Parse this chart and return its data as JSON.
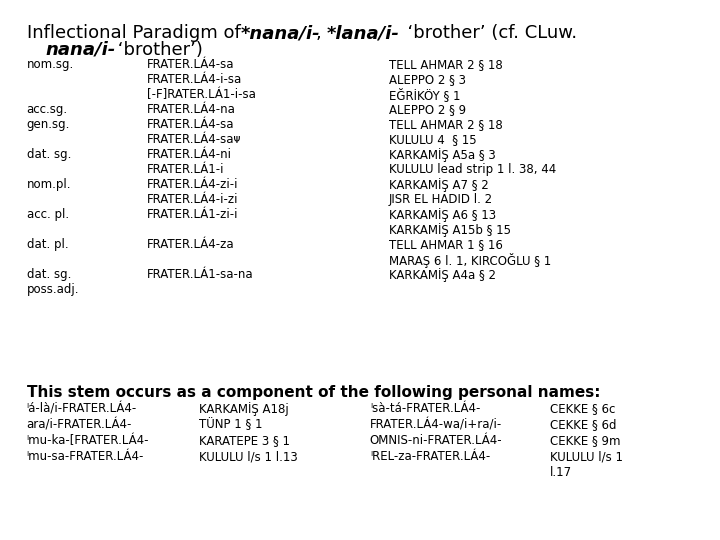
{
  "title_line1": "Inflectional Paradigm of  *nana/i-, *lana/i-  ‘brother’ (cf. CLuw.",
  "title_line2": "   nana/i- ‘brother’)",
  "title_bold_parts": [
    "*nana/i-",
    "*lana/i-",
    "nana/i-"
  ],
  "rows": [
    {
      "case": "nom.sg.",
      "form": "FRATER.LÁ4-sa",
      "ref": "TELL AHMAR 2 § 18"
    },
    {
      "case": "",
      "form": "FRATER.LÁ4-i-sa",
      "ref": "ALEPPO 2 § 3"
    },
    {
      "case": "",
      "form": "[-F]RATER.LÁ1-i-sa",
      "ref": "EĞRİKÖY § 1"
    },
    {
      "case": "acc.sg.",
      "form": "FRATER.LÁ4-na",
      "ref": "ALEPPO 2 § 9"
    },
    {
      "case": "gen.sg.",
      "form": "FRATER.LÁ4-sa",
      "ref": "TELL AHMAR 2 § 18"
    },
    {
      "case": "",
      "form": "FRATER.LÁ4-saᴪ",
      "ref": "KULULU 4  § 15"
    },
    {
      "case": "dat. sg.",
      "form": "FRATER.LÁ4-ni",
      "ref": "KARKAMİŞ A5a § 3"
    },
    {
      "case": "",
      "form": "FRATER.LÁ1-i",
      "ref": "KULULU lead strip 1 l. 38, 44"
    },
    {
      "case": "nom.pl.",
      "form": "FRATER.LÁ4-zi-i",
      "ref": "KARKAMİŞ A7 § 2"
    },
    {
      "case": "",
      "form": "FRATER.LÁ4-i-zi",
      "ref": "JISR EL HADID l. 2"
    },
    {
      "case": "acc. pl.",
      "form": "FRATER.LÁ1-zi-i",
      "ref": "KARKAMİŞ A6 § 13"
    },
    {
      "case": "",
      "form": "",
      "ref": "KARKAMİŞ A15b § 15"
    },
    {
      "case": "dat. pl.",
      "form": "FRATER.LÁ4-za",
      "ref": "TELL AHMAR 1 § 16"
    },
    {
      "case": "",
      "form": "",
      "ref": "MARAŞ 6 l. 1, KIRCOĞLU § 1"
    },
    {
      "case": "dat. sg.",
      "form": "FRATER.LÁ1-sa-na",
      "ref": "KARKAMİŞ A4a § 2"
    },
    {
      "case": "poss.adj.",
      "form": "",
      "ref": ""
    }
  ],
  "bottom_title": "This stem occurs as a component of the following personal names:",
  "personal_names": [
    {
      "col1_name": "ᴵá-là/i-FRATER.LÁ4-",
      "col1_ref": "KARKAMİŞ A18j",
      "col2_name": "ᴵsà-tá-FRATER.LÁ4-",
      "col2_ref": "CEKKE § 6c"
    },
    {
      "col1_name": "ara/i-FRATER.LÁ4-",
      "col1_ref": "TÜNP 1 § 1",
      "col2_name": "FRATER.LÁ4-wa/i+ra/i-",
      "col2_ref": "CEKKE § 6d"
    },
    {
      "col1_name": "ᴵmu-ka-[FRATER.LÁ4-",
      "col1_ref": "KARATEPE 3 § 1",
      "col2_name": "OMNIS-ni-FRATER.LÁ4-",
      "col2_ref": "CEKKE § 9m"
    },
    {
      "col1_name": "ᴵmu-sa-FRATER.LÁ4-",
      "col1_ref": "KULULU l/s 1 l.13",
      "col2_name": "ᴵREL-za-FRATER.LÁ4-",
      "col2_ref": "KULULU l/s 1"
    }
  ],
  "last_ref": "l.17",
  "bg_color": "#ffffff",
  "text_color": "#000000",
  "font_size_title": 13,
  "font_size_body": 8.5,
  "font_size_bottom_title": 11
}
